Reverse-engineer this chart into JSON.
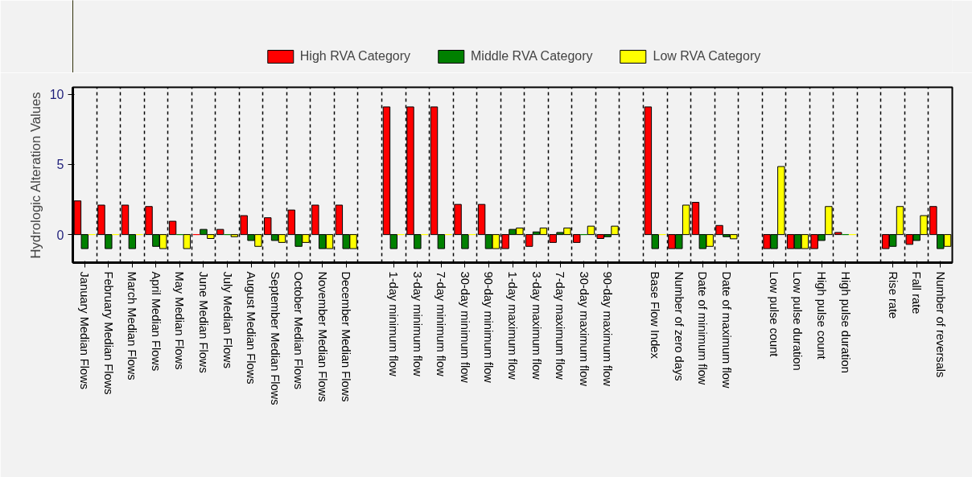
{
  "chart_data": {
    "type": "bar",
    "ylabel": "Hydrologic Alteration Values",
    "categories": [
      "January Median Flows",
      "February Median Flows",
      "March Median Flows",
      "April Median Flows",
      "May Median Flows",
      "June Median Flows",
      "July Median Flows",
      "August Median Flows",
      "September Median Flows",
      "October Median Flows",
      "November Median Flows",
      "December Median Flows",
      null,
      "1-day minimum flow",
      "3-day minimum flow",
      "7-day minimum flow",
      "30-day minimum flow",
      "90-day minimum flow",
      "1-day maximum flow",
      "3-day maximum flow",
      "7-day maximum flow",
      "30-day maximum flow",
      "90-day maximum flow",
      null,
      "Base Flow Index",
      "Number of zero days",
      "Date of minimum flow",
      "Date of maximum flow",
      null,
      "Low pulse count",
      "Low pulse duration",
      "High pulse count",
      "High pulse duration",
      null,
      "Rise rate",
      "Fall rate",
      "Number of reversals"
    ],
    "series": [
      {
        "name": "High RVA Category",
        "color": "#ff0000",
        "values": [
          2.4,
          2.1,
          2.1,
          2.0,
          0.95,
          0,
          0.37,
          1.35,
          1.2,
          1.75,
          2.1,
          2.1,
          null,
          9.1,
          9.1,
          9.1,
          2.15,
          2.15,
          -1,
          -0.84,
          -0.56,
          -0.56,
          -0.28,
          null,
          9.1,
          -1,
          2.3,
          0.65,
          null,
          -1,
          -1,
          -1,
          0.15,
          null,
          -1,
          -0.7,
          2.0
        ]
      },
      {
        "name": "Middle RVA Category",
        "color": "#008000",
        "values": [
          -1,
          -1,
          -1,
          -0.84,
          0,
          0.37,
          0,
          -0.42,
          -0.42,
          -0.84,
          -1,
          -1,
          null,
          -1,
          -1,
          -1,
          -1,
          -1,
          0.37,
          0.19,
          0.15,
          0,
          -0.15,
          null,
          -1,
          -1,
          -1,
          -0.15,
          null,
          -1,
          -1,
          -0.42,
          0,
          null,
          -0.84,
          -0.42,
          -1
        ]
      },
      {
        "name": "Low RVA Category",
        "color": "#ffff00",
        "values": [
          0,
          0,
          0,
          -1,
          -1,
          -0.28,
          -0.15,
          -0.84,
          -0.56,
          -0.56,
          -1,
          -1,
          null,
          0,
          0,
          0,
          0,
          -1,
          0.47,
          0.47,
          0.47,
          0.6,
          0.6,
          null,
          0,
          2.1,
          -0.84,
          -0.3,
          null,
          4.85,
          -1,
          2.0,
          0,
          null,
          2.0,
          1.35,
          -0.84
        ]
      }
    ],
    "ylim": [
      -2,
      10.5
    ],
    "yticks": [
      0,
      5,
      10
    ],
    "grid": "x",
    "legend": "top"
  }
}
